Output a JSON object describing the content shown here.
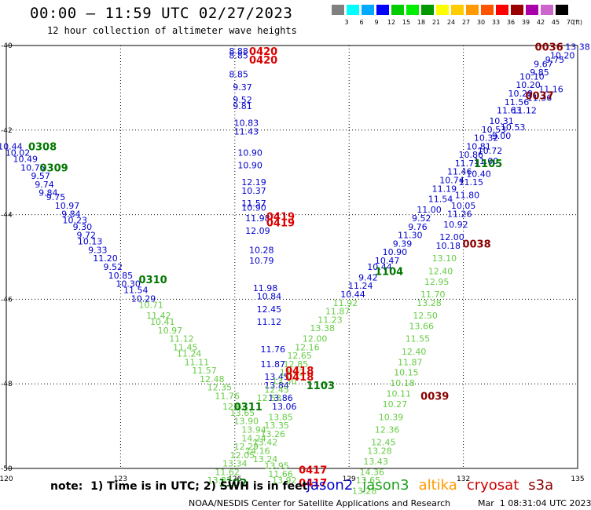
{
  "title": "00:00 – 11:59 UTC 02/27/2023",
  "subtitle": "12 hour collection of altimeter wave heights",
  "legend": {
    "unit": "(ft)",
    "bins": [
      {
        "label": "3",
        "color": "#808080"
      },
      {
        "label": "6",
        "color": "#00ffff"
      },
      {
        "label": "9",
        "color": "#00aaff"
      },
      {
        "label": "12",
        "color": "#0000ff"
      },
      {
        "label": "15",
        "color": "#00cc00"
      },
      {
        "label": "18",
        "color": "#00ee00"
      },
      {
        "label": "21",
        "color": "#009900"
      },
      {
        "label": "24",
        "color": "#ffff00"
      },
      {
        "label": "27",
        "color": "#ffcc00"
      },
      {
        "label": "30",
        "color": "#ff9900"
      },
      {
        "label": "33",
        "color": "#ff5500"
      },
      {
        "label": "36",
        "color": "#ff0000"
      },
      {
        "label": "39",
        "color": "#990000"
      },
      {
        "label": "42",
        "color": "#aa00aa"
      },
      {
        "label": "45",
        "color": "#cc66cc"
      },
      {
        "label": "70",
        "color": "#000000"
      }
    ]
  },
  "axes": {
    "lat_labels": [
      "-40",
      "-42",
      "-44",
      "-46",
      "-48",
      "-50"
    ],
    "lat_values": [
      -40,
      -42,
      -44,
      -46,
      -48,
      -50
    ],
    "lon_labels": [
      "120",
      "123",
      "126",
      "129",
      "132",
      "135"
    ],
    "lon_values": [
      120,
      123,
      126,
      129,
      132,
      135
    ]
  },
  "colors": {
    "jason2": "#0000cc",
    "jason3": "#1fa01f",
    "jason3_light": "#66cc44",
    "altika": "#ff9900",
    "cryosat": "#cc0000",
    "s3a": "#8b0000",
    "cyan": "#00aacc",
    "track_green_dark": "#007700"
  },
  "tracks": [
    {
      "points": [
        [
          120.1,
          -42.4,
          "10.44"
        ],
        [
          120.3,
          -42.55,
          "10.02"
        ],
        [
          120.5,
          -42.7,
          "10.49"
        ],
        [
          120.7,
          -42.9,
          "10.75"
        ],
        [
          120.9,
          -43.1,
          "9.57"
        ],
        [
          121.0,
          -43.3,
          "9.74"
        ],
        [
          121.1,
          -43.5,
          "9.84"
        ],
        [
          121.3,
          -43.6,
          "9.75"
        ],
        [
          121.6,
          -43.8,
          "10.97"
        ],
        [
          121.7,
          -44.0,
          "9.84"
        ],
        [
          121.8,
          -44.15,
          "10.23"
        ],
        [
          122.0,
          -44.3,
          "9.30"
        ],
        [
          122.1,
          -44.5,
          "9.72"
        ],
        [
          122.2,
          -44.65,
          "10.13"
        ],
        [
          122.4,
          -44.85,
          "9.33"
        ],
        [
          122.6,
          -45.05,
          "11.20"
        ],
        [
          122.8,
          -45.25,
          "9.52"
        ],
        [
          123.0,
          -45.45,
          "10.85"
        ],
        [
          123.2,
          -45.65,
          "10.30"
        ],
        [
          123.4,
          -45.8,
          "11.54"
        ],
        [
          123.6,
          -46.0,
          "10.29"
        ],
        [
          123.8,
          -46.15,
          "10.71"
        ],
        [
          124.0,
          -46.4,
          "11.42"
        ],
        [
          124.1,
          -46.55,
          "10.41"
        ],
        [
          124.3,
          -46.75,
          "10.97"
        ],
        [
          124.6,
          -46.95,
          "11.12"
        ],
        [
          124.7,
          -47.15,
          "11.45"
        ],
        [
          124.8,
          -47.3,
          "11.24"
        ],
        [
          125.0,
          -47.5,
          "11.11"
        ],
        [
          125.2,
          -47.7,
          "11.57"
        ],
        [
          125.4,
          -47.9,
          "12.48"
        ],
        [
          125.6,
          -48.1,
          "12.35"
        ],
        [
          125.8,
          -48.3,
          "11.76"
        ],
        [
          126.0,
          -48.55,
          "12.62"
        ],
        [
          126.2,
          -48.7,
          "13.65"
        ],
        [
          126.3,
          -48.9,
          "13.90"
        ],
        [
          126.5,
          -49.1,
          "13.94"
        ],
        [
          126.5,
          -49.3,
          "14.24"
        ],
        [
          126.3,
          -49.5,
          "12.29"
        ],
        [
          126.2,
          -49.7,
          "12.05"
        ],
        [
          126.0,
          -49.9,
          "13.34"
        ],
        [
          125.8,
          -50.1,
          "11.62"
        ],
        [
          125.6,
          -50.3,
          "13.37"
        ]
      ],
      "color": "#0000cc",
      "green_from": 21
    },
    {
      "points": [
        [
          126.1,
          -40.15,
          "8.88"
        ],
        [
          126.1,
          -40.25,
          "8.85"
        ],
        [
          126.1,
          -40.7,
          "8.85"
        ],
        [
          126.2,
          -41.0,
          "9.37"
        ],
        [
          126.2,
          -41.3,
          "9.52"
        ],
        [
          126.2,
          -41.45,
          "9.81"
        ],
        [
          126.3,
          -41.85,
          "10.83"
        ],
        [
          126.3,
          -42.05,
          "11.43"
        ],
        [
          126.4,
          -42.55,
          "10.90"
        ],
        [
          126.4,
          -42.85,
          "10.90"
        ],
        [
          126.5,
          -43.25,
          "12.19"
        ],
        [
          126.5,
          -43.45,
          "10.37"
        ],
        [
          126.5,
          -43.75,
          "11.57"
        ],
        [
          126.5,
          -43.85,
          "10.90"
        ],
        [
          126.6,
          -44.1,
          "11.98"
        ],
        [
          126.6,
          -44.4,
          "12.09"
        ],
        [
          126.7,
          -44.85,
          "10.28"
        ],
        [
          126.7,
          -45.1,
          "10.79"
        ],
        [
          126.8,
          -45.75,
          "11.98"
        ],
        [
          126.9,
          -45.95,
          "10.84"
        ],
        [
          126.9,
          -46.25,
          "12.45"
        ],
        [
          126.9,
          -46.55,
          "11.12"
        ],
        [
          127.0,
          -47.2,
          "11.76"
        ],
        [
          127.0,
          -47.55,
          "11.87"
        ],
        [
          127.1,
          -47.85,
          "13.45"
        ],
        [
          127.1,
          -48.05,
          "13.84"
        ],
        [
          127.2,
          -48.35,
          "13.86"
        ],
        [
          127.3,
          -48.55,
          "13.06"
        ],
        [
          127.2,
          -48.8,
          "13.85"
        ],
        [
          127.1,
          -49.0,
          "13.35"
        ],
        [
          127.0,
          -49.2,
          "13.26"
        ],
        [
          126.8,
          -49.4,
          "13.42"
        ],
        [
          126.6,
          -49.6,
          "14.16"
        ],
        [
          126.8,
          -49.8,
          "13.24"
        ],
        [
          127.1,
          -49.95,
          "13.95"
        ],
        [
          127.2,
          -50.15,
          "11.66"
        ],
        [
          127.3,
          -50.3,
          "13.92"
        ]
      ],
      "color": "#0000cc",
      "green_from": 28
    },
    {
      "points": [
        [
          135.0,
          -40.05,
          "13.38"
        ],
        [
          134.6,
          -40.25,
          "10.20"
        ],
        [
          134.4,
          -40.35,
          "9.75"
        ],
        [
          134.1,
          -40.45,
          "9.67"
        ],
        [
          134.0,
          -40.65,
          "9.85"
        ],
        [
          133.8,
          -40.75,
          "10.10"
        ],
        [
          133.7,
          -40.95,
          "10.20"
        ],
        [
          133.5,
          -41.15,
          "10.29"
        ],
        [
          133.4,
          -41.35,
          "11.56"
        ],
        [
          133.2,
          -41.55,
          "11.63"
        ],
        [
          133.0,
          -41.8,
          "10.31"
        ],
        [
          132.8,
          -42.0,
          "10.53"
        ],
        [
          132.6,
          -42.2,
          "10.32"
        ],
        [
          132.4,
          -42.4,
          "10.81"
        ],
        [
          132.2,
          -42.6,
          "10.86"
        ],
        [
          132.1,
          -42.8,
          "11.71"
        ],
        [
          131.9,
          -43.0,
          "11.46"
        ],
        [
          131.7,
          -43.2,
          "10.74"
        ],
        [
          131.5,
          -43.4,
          "11.19"
        ],
        [
          131.4,
          -43.65,
          "11.54"
        ],
        [
          131.1,
          -43.9,
          "11.00"
        ],
        [
          130.9,
          -44.1,
          "9.52"
        ],
        [
          130.8,
          -44.3,
          "9.76"
        ],
        [
          130.6,
          -44.5,
          "11.30"
        ],
        [
          130.4,
          -44.7,
          "9.39"
        ],
        [
          130.2,
          -44.9,
          "10.90"
        ],
        [
          130.0,
          -45.1,
          "10.47"
        ],
        [
          129.8,
          -45.25,
          "10.44"
        ],
        [
          129.5,
          -45.5,
          "9.42"
        ],
        [
          129.3,
          -45.7,
          "11.24"
        ],
        [
          129.1,
          -45.9,
          "10.44"
        ],
        [
          128.9,
          -46.1,
          "11.92"
        ],
        [
          128.7,
          -46.3,
          "11.87"
        ],
        [
          128.5,
          -46.5,
          "11.23"
        ],
        [
          128.3,
          -46.7,
          "13.38"
        ],
        [
          128.1,
          -46.95,
          "12.00"
        ],
        [
          127.9,
          -47.15,
          "12.16"
        ],
        [
          127.7,
          -47.35,
          "12.65"
        ],
        [
          127.6,
          -47.55,
          "12.85"
        ],
        [
          127.5,
          -47.75,
          "13.42"
        ],
        [
          127.3,
          -47.95,
          "13.30"
        ],
        [
          127.1,
          -48.15,
          "12.45"
        ],
        [
          126.9,
          -48.35,
          "12.53"
        ]
      ],
      "color": "#0000cc",
      "green_from": 31
    },
    {
      "points": [
        [
          134.3,
          -41.05,
          "11.16"
        ],
        [
          134.0,
          -41.25,
          "11.36"
        ],
        [
          133.6,
          -41.55,
          "11.12"
        ],
        [
          133.3,
          -41.95,
          "10.53"
        ],
        [
          133.0,
          -42.15,
          "9.00"
        ],
        [
          132.7,
          -42.5,
          "10.72"
        ],
        [
          132.6,
          -42.75,
          "11.00"
        ],
        [
          132.4,
          -43.05,
          "10.40"
        ],
        [
          132.2,
          -43.25,
          "11.15"
        ],
        [
          132.1,
          -43.55,
          "11.80"
        ],
        [
          132.0,
          -43.8,
          "10.05"
        ],
        [
          131.9,
          -44.0,
          "11.26"
        ],
        [
          131.8,
          -44.25,
          "10.92"
        ],
        [
          131.7,
          -44.55,
          "12.00"
        ],
        [
          131.6,
          -44.75,
          "10.18"
        ],
        [
          131.5,
          -45.05,
          "13.10"
        ],
        [
          131.4,
          -45.35,
          "12.40"
        ],
        [
          131.3,
          -45.6,
          "12.95"
        ],
        [
          131.2,
          -45.9,
          "11.70"
        ],
        [
          131.1,
          -46.1,
          "13.28"
        ],
        [
          131.0,
          -46.4,
          "12.50"
        ],
        [
          130.9,
          -46.65,
          "13.66"
        ],
        [
          130.8,
          -46.95,
          "11.55"
        ],
        [
          130.7,
          -47.25,
          "12.40"
        ],
        [
          130.6,
          -47.5,
          "11.87"
        ],
        [
          130.5,
          -47.75,
          "10.15"
        ],
        [
          130.4,
          -48.0,
          "10.18"
        ],
        [
          130.3,
          -48.25,
          "10.11"
        ],
        [
          130.2,
          -48.5,
          "10.27"
        ],
        [
          130.1,
          -48.8,
          "10.39"
        ],
        [
          130.0,
          -49.1,
          "12.36"
        ],
        [
          129.9,
          -49.4,
          "12.45"
        ],
        [
          129.8,
          -49.6,
          "13.28"
        ],
        [
          129.7,
          -49.85,
          "13.43"
        ],
        [
          129.6,
          -50.1,
          "14.36"
        ],
        [
          129.5,
          -50.3,
          "13.65"
        ],
        [
          129.4,
          -50.55,
          "13.28"
        ]
      ],
      "color": "#0000cc",
      "green_from": 15
    }
  ],
  "pass_labels": [
    {
      "text": "0308",
      "lon": 120.95,
      "lat": -42.4,
      "color": "#007700"
    },
    {
      "text": "0309",
      "lon": 121.25,
      "lat": -42.9,
      "color": "#007700"
    },
    {
      "text": "0310",
      "lon": 123.85,
      "lat": -45.55,
      "color": "#007700"
    },
    {
      "text": "0311",
      "lon": 126.35,
      "lat": -48.55,
      "color": "#007700"
    },
    {
      "text": "1102",
      "lon": 125.95,
      "lat": -50.35,
      "color": "#007700"
    },
    {
      "text": "1103",
      "lon": 128.25,
      "lat": -48.05,
      "color": "#007700"
    },
    {
      "text": "1104",
      "lon": 130.05,
      "lat": -45.35,
      "color": "#007700"
    },
    {
      "text": "1105",
      "lon": 132.65,
      "lat": -42.8,
      "color": "#007700"
    },
    {
      "text": "0420",
      "lon": 126.75,
      "lat": -40.15,
      "color": "#dd0000"
    },
    {
      "text": "0420",
      "lon": 126.75,
      "lat": -40.35,
      "color": "#dd0000"
    },
    {
      "text": "0419",
      "lon": 127.2,
      "lat": -44.05,
      "color": "#dd0000"
    },
    {
      "text": "0419",
      "lon": 127.2,
      "lat": -44.2,
      "color": "#dd0000"
    },
    {
      "text": "0418",
      "lon": 127.7,
      "lat": -47.7,
      "color": "#dd0000"
    },
    {
      "text": "0418",
      "lon": 127.7,
      "lat": -47.85,
      "color": "#dd0000"
    },
    {
      "text": "0417",
      "lon": 128.05,
      "lat": -50.05,
      "color": "#dd0000"
    },
    {
      "text": "0417",
      "lon": 128.05,
      "lat": -50.35,
      "color": "#dd0000"
    },
    {
      "text": "0036",
      "lon": 134.25,
      "lat": -40.05,
      "color": "#8b0000"
    },
    {
      "text": "0037",
      "lon": 134.0,
      "lat": -41.2,
      "color": "#8b0000"
    },
    {
      "text": "0038",
      "lon": 132.35,
      "lat": -44.7,
      "color": "#8b0000"
    },
    {
      "text": "0039",
      "lon": 131.25,
      "lat": -48.3,
      "color": "#8b0000"
    }
  ],
  "note": "note:  1) Time is in UTC; 2) SWH is in feet",
  "satellites": [
    {
      "name": "jason2",
      "color": "#0000cc"
    },
    {
      "name": "jason3",
      "color": "#1fa01f"
    },
    {
      "name": "altika",
      "color": "#ff9900"
    },
    {
      "name": "cryosat",
      "color": "#cc0000"
    },
    {
      "name": "s3a",
      "color": "#8b0000"
    }
  ],
  "credit": "NOAA/NESDIS Center for Satellite Applications and Research",
  "timestamp": "Mar  1 08:31:04 UTC 2023"
}
